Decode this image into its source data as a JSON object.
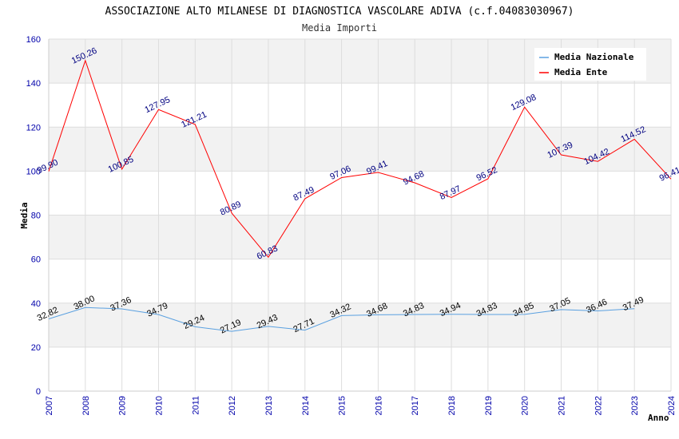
{
  "chart_data": {
    "type": "line",
    "title": "ASSOCIAZIONE ALTO MILANESE DI DIAGNOSTICA VASCOLARE ADIVA (c.f.04083030967)",
    "subtitle": "Media Importi",
    "xlabel": "Anno",
    "ylabel": "Media",
    "ylim": [
      0,
      160
    ],
    "yticks": [
      "0",
      "20",
      "40",
      "60",
      "80",
      "100",
      "120",
      "140",
      "160"
    ],
    "categories": [
      "2007",
      "2008",
      "2009",
      "2010",
      "2011",
      "2012",
      "2013",
      "2014",
      "2015",
      "2016",
      "2017",
      "2018",
      "2019",
      "2020",
      "2021",
      "2022",
      "2023",
      "2024"
    ],
    "legend_position": "top-right",
    "grid": true,
    "series": [
      {
        "name": "Media Nazionale",
        "color": "#5aa0e0",
        "values": [
          32.82,
          38.0,
          37.36,
          34.79,
          29.24,
          27.19,
          29.43,
          27.71,
          34.32,
          34.68,
          34.83,
          34.94,
          34.83,
          34.85,
          37.05,
          36.46,
          37.49,
          null
        ],
        "labels": [
          "32.82",
          "38.00",
          "37.36",
          "34.79",
          "29.24",
          "27.19",
          "29.43",
          "27.71",
          "34.32",
          "34.68",
          "34.83",
          "34.94",
          "34.83",
          "34.85",
          "37.05",
          "36.46",
          "37.49",
          null
        ]
      },
      {
        "name": "Media Ente",
        "color": "#ff0000",
        "values": [
          99.9,
          150.26,
          100.85,
          127.95,
          121.21,
          80.89,
          60.83,
          87.49,
          97.06,
          99.41,
          94.68,
          87.97,
          96.52,
          129.08,
          107.39,
          104.42,
          114.52,
          96.41
        ],
        "labels": [
          "99.90",
          "150.26",
          "100.85",
          "127.95",
          "121.21",
          "80.89",
          "60.83",
          "87.49",
          "97.06",
          "99.41",
          "94.68",
          "87.97",
          "96.52",
          "129.08",
          "107.39",
          "104.42",
          "114.52",
          "96.41"
        ]
      }
    ]
  }
}
